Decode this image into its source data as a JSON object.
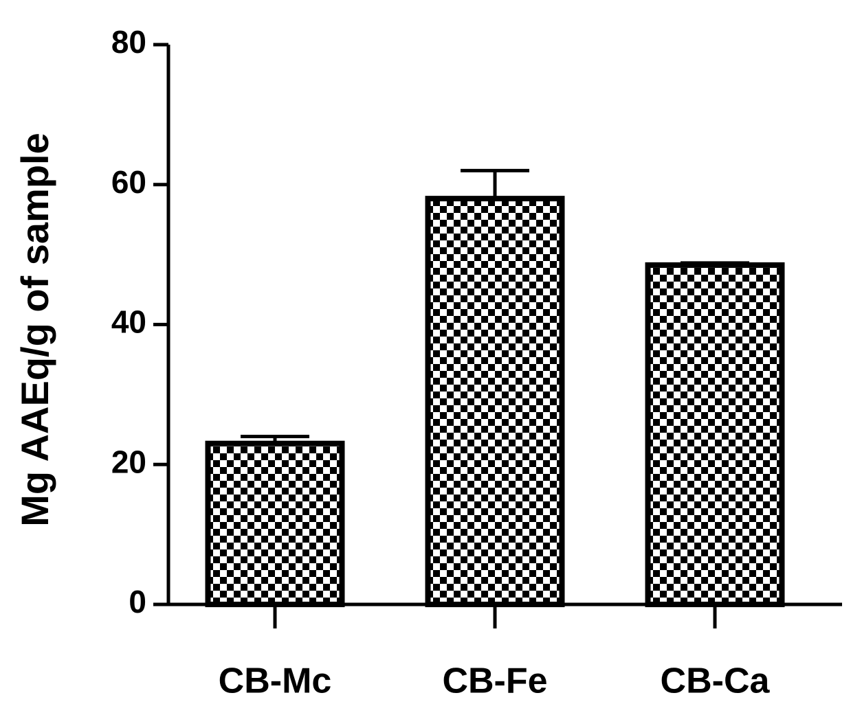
{
  "chart_data": {
    "type": "bar",
    "y_label": "Mg AAEq/g of sample",
    "categories": [
      "CB-Mc",
      "CB-Fe",
      "CB-Ca"
    ],
    "values": [
      23,
      58,
      48.5
    ],
    "errors": [
      1,
      4,
      0.3
    ],
    "color": "#000000",
    "ylim": [
      0,
      80
    ],
    "yticks": [
      0,
      20,
      40,
      60,
      80
    ],
    "grid": false
  }
}
